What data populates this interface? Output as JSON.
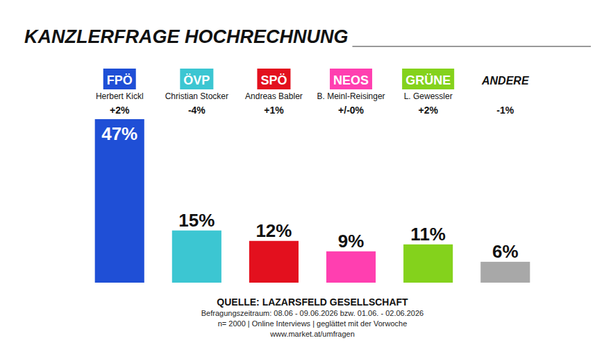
{
  "chart_data": {
    "type": "bar",
    "title": "KANZLERFRAGE HOCHRECHNUNG",
    "categories": [
      "FPÖ",
      "ÖVP",
      "SPÖ",
      "NEOS",
      "GRÜNE",
      "ANDERE"
    ],
    "candidates": [
      "Herbert Kickl",
      "Christian Stocker",
      "Andreas Babler",
      "B. Meinl-Reisinger",
      "L. Gewessler",
      null
    ],
    "changes": [
      2,
      -4,
      1,
      0,
      2,
      -1
    ],
    "change_labels": [
      "+2%",
      "-4%",
      "+1%",
      "+/-0%",
      "+2%",
      "-1%"
    ],
    "values": [
      47,
      15,
      12,
      9,
      11,
      6
    ],
    "value_labels": [
      "47%",
      "15%",
      "12%",
      "9%",
      "11%",
      "6%"
    ],
    "colors": [
      "#1f4fd6",
      "#3cc6d2",
      "#e3101e",
      "#ff3fb0",
      "#84d21c",
      "#a8a8a8"
    ],
    "ylim": [
      0,
      47
    ],
    "data_labels": true,
    "tick_labels": false,
    "source": "QUELLE: LAZARSFELD GESELLSCHAFT",
    "notes": [
      "Befragungszeitraum: 08.06 - 09.06.2026 bzw. 01.06. - 02.06.2026",
      "n= 2000 | Online Interviews | geglättet mit der Vorwoche",
      "www.market.at/umfragen"
    ]
  }
}
